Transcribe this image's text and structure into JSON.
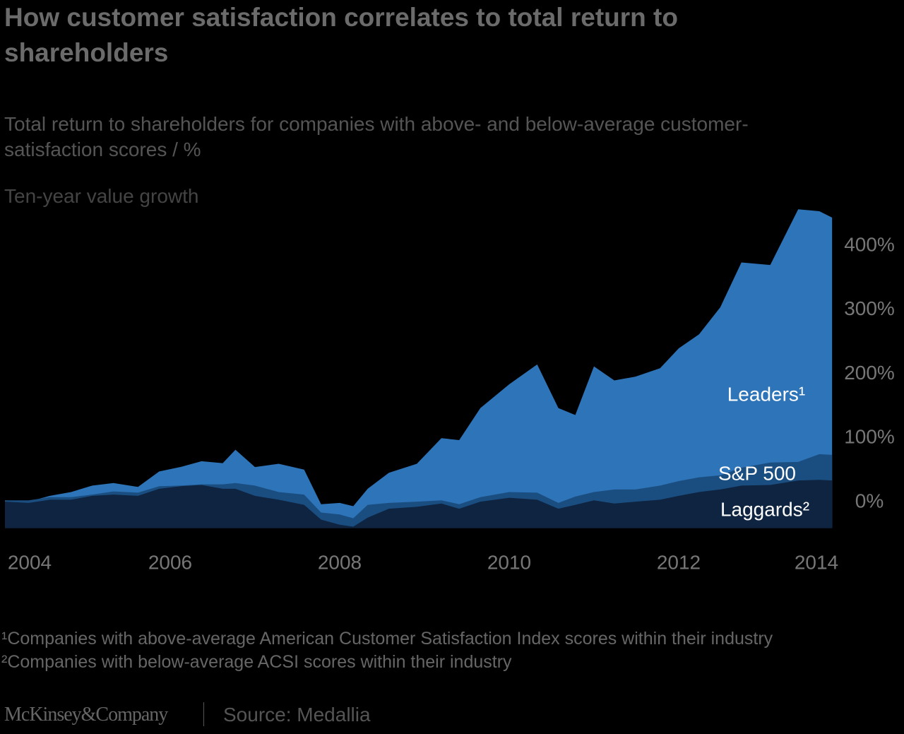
{
  "chart_data": {
    "type": "area",
    "title": "How customer satisfaction correlates to total return to shareholders",
    "subtitle": "Total return to shareholders for companies with above- and below-average customer-satisfaction scores / %",
    "y_label": "Ten-year value growth",
    "x": [
      2004.05,
      2004.33,
      2004.58,
      2004.83,
      2005.08,
      2005.33,
      2005.62,
      2005.87,
      2006.12,
      2006.37,
      2006.62,
      2006.77,
      2007.0,
      2007.28,
      2007.58,
      2007.78,
      2008.0,
      2008.16,
      2008.33,
      2008.58,
      2008.91,
      2009.2,
      2009.41,
      2009.66,
      2010.0,
      2010.33,
      2010.58,
      2010.78,
      2011.0,
      2011.24,
      2011.49,
      2011.78,
      2012.0,
      2012.24,
      2012.49,
      2012.74,
      2013.08,
      2013.41,
      2013.66,
      2013.81
    ],
    "series": [
      {
        "name": "Leaders¹",
        "color": "#2e74b8",
        "values": [
          3,
          1,
          10,
          16,
          26,
          30,
          24,
          48,
          55,
          64,
          61,
          82,
          55,
          60,
          51,
          -3,
          -1,
          -6,
          21,
          46,
          60,
          100,
          97,
          147,
          184,
          215,
          147,
          136,
          212,
          190,
          196,
          209,
          240,
          262,
          304,
          374,
          370,
          457,
          454,
          444
        ]
      },
      {
        "name": "S&P 500",
        "color": "#1b4e80",
        "values": [
          3,
          3,
          8,
          8,
          12,
          17,
          15,
          25,
          26,
          28,
          28,
          30,
          26,
          16,
          12,
          -16,
          -19,
          -25,
          -4,
          -1,
          1,
          3,
          -3,
          8,
          16,
          15,
          -1,
          9,
          16,
          20,
          20,
          26,
          33,
          39,
          42,
          54,
          62,
          63,
          75,
          74
        ]
      },
      {
        "name": "Laggards²",
        "color": "#0e2440",
        "values": [
          1,
          -1,
          4,
          4,
          10,
          12,
          10,
          21,
          25,
          27,
          21,
          21,
          10,
          4,
          -4,
          -27,
          -35,
          -38,
          -24,
          -10,
          -7,
          -2,
          -10,
          1,
          7,
          4,
          -10,
          -4,
          3,
          -2,
          1,
          4,
          10,
          16,
          20,
          26,
          27,
          34,
          35,
          34
        ]
      }
    ],
    "xlim": [
      2004.0,
      2013.85
    ],
    "xticks": [
      2004,
      2006,
      2008,
      2010,
      2012,
      2014
    ],
    "ylim": [
      -40,
      460
    ],
    "yticks": [
      {
        "value": 0,
        "label": "0%"
      },
      {
        "value": 100,
        "label": "100%"
      },
      {
        "value": 200,
        "label": "200%"
      },
      {
        "value": 300,
        "label": "300%"
      },
      {
        "value": 400,
        "label": "400%"
      }
    ],
    "footnotes": [
      "¹Companies with above-average American Customer Satisfaction Index scores within their industry",
      "²Companies with below-average ACSI scores within their industry"
    ],
    "brand": "McKinsey&Company",
    "source": "Source: Medallia"
  }
}
